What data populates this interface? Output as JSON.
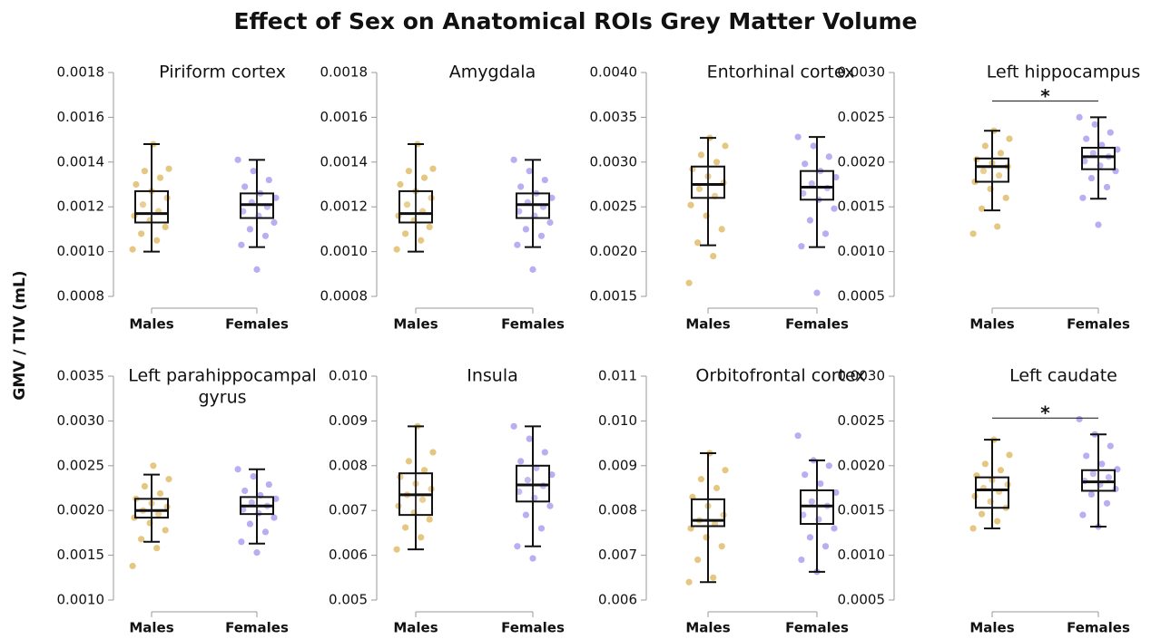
{
  "title": "Effect of Sex on Anatomical ROIs Grey Matter Volume",
  "y_label": "GMV / TIV (mL)",
  "chart_data": [
    {
      "type": "box",
      "title": "Piriform cortex",
      "categories": [
        "Males",
        "Females"
      ],
      "colors": [
        "#d6a22e",
        "#8878e8"
      ],
      "ylim": [
        0.0008,
        0.0018
      ],
      "yticks": [
        0.0008,
        {
          "value": 0.001,
          "label": "0.0010"
        },
        0.0012,
        0.0014,
        0.0016,
        0.0018
      ],
      "boxes": [
        {
          "low": 0.001,
          "q1": 0.00113,
          "median": 0.00117,
          "q3": 0.00127,
          "high": 0.00148,
          "points": [
            0.00101,
            0.00105,
            0.00108,
            0.00111,
            0.00114,
            0.00116,
            0.00118,
            0.00121,
            0.00124,
            0.00127,
            0.0013,
            0.00133,
            0.00136,
            0.00137,
            0.00148
          ]
        },
        {
          "low": 0.00102,
          "q1": 0.00115,
          "median": 0.00121,
          "q3": 0.00126,
          "high": 0.00141,
          "points": [
            0.00092,
            0.00103,
            0.00107,
            0.0011,
            0.00113,
            0.00116,
            0.00118,
            0.0012,
            0.00122,
            0.00124,
            0.00126,
            0.00129,
            0.00132,
            0.00136,
            0.00141
          ]
        }
      ]
    },
    {
      "type": "box",
      "title": "Amygdala",
      "categories": [
        "Males",
        "Females"
      ],
      "colors": [
        "#d6a22e",
        "#8878e8"
      ],
      "ylim": [
        0.0008,
        0.0018
      ],
      "yticks": [
        0.0008,
        {
          "value": 0.001,
          "label": "0.0010"
        },
        0.0012,
        0.0014,
        0.0016,
        0.0018
      ],
      "boxes": [
        {
          "low": 0.001,
          "q1": 0.00113,
          "median": 0.00117,
          "q3": 0.00127,
          "high": 0.00148,
          "points": [
            0.00101,
            0.00105,
            0.00108,
            0.00111,
            0.00114,
            0.00116,
            0.00118,
            0.00121,
            0.00124,
            0.00127,
            0.0013,
            0.00133,
            0.00136,
            0.00137,
            0.00148
          ]
        },
        {
          "low": 0.00102,
          "q1": 0.00115,
          "median": 0.00121,
          "q3": 0.00126,
          "high": 0.00141,
          "points": [
            0.00092,
            0.00103,
            0.00107,
            0.0011,
            0.00113,
            0.00116,
            0.00118,
            0.0012,
            0.00122,
            0.00124,
            0.00126,
            0.00129,
            0.00132,
            0.00136,
            0.00141
          ]
        }
      ]
    },
    {
      "type": "box",
      "title": "Entorhinal cortex",
      "categories": [
        "Males",
        "Females"
      ],
      "colors": [
        "#d6a22e",
        "#8878e8"
      ],
      "ylim": [
        0.0015,
        0.004
      ],
      "yticks": [
        0.0015,
        {
          "value": 0.002,
          "label": "0.0020"
        },
        0.0025,
        {
          "value": 0.003,
          "label": "0.0030"
        },
        0.0035,
        {
          "value": 0.004,
          "label": "0.0040"
        }
      ],
      "boxes": [
        {
          "low": 0.00207,
          "q1": 0.0026,
          "median": 0.00275,
          "q3": 0.00295,
          "high": 0.00327,
          "points": [
            0.00165,
            0.00195,
            0.0021,
            0.00225,
            0.0024,
            0.00252,
            0.00262,
            0.0027,
            0.00277,
            0.00284,
            0.00292,
            0.003,
            0.00308,
            0.00318,
            0.00327
          ]
        },
        {
          "low": 0.00205,
          "q1": 0.00258,
          "median": 0.00272,
          "q3": 0.0029,
          "high": 0.00328,
          "points": [
            0.00154,
            0.00206,
            0.0022,
            0.00235,
            0.00248,
            0.00258,
            0.00265,
            0.00271,
            0.00276,
            0.00283,
            0.0029,
            0.00298,
            0.00306,
            0.00318,
            0.00328
          ]
        }
      ]
    },
    {
      "type": "box",
      "title": "Left hippocampus",
      "categories": [
        "Males",
        "Females"
      ],
      "colors": [
        "#d6a22e",
        "#8878e8"
      ],
      "annotation": "*",
      "ylim": [
        0.0005,
        0.003
      ],
      "yticks": [
        0.0005,
        {
          "value": 0.001,
          "label": "0.0010"
        },
        0.0015,
        {
          "value": 0.002,
          "label": "0.0020"
        },
        0.0025,
        {
          "value": 0.003,
          "label": "0.0030"
        }
      ],
      "boxes": [
        {
          "low": 0.00146,
          "q1": 0.00178,
          "median": 0.00195,
          "q3": 0.00204,
          "high": 0.00235,
          "points": [
            0.0012,
            0.00128,
            0.00148,
            0.0016,
            0.0017,
            0.00178,
            0.00185,
            0.0019,
            0.00195,
            0.00199,
            0.00203,
            0.0021,
            0.00218,
            0.00226,
            0.00235
          ]
        },
        {
          "low": 0.00159,
          "q1": 0.00192,
          "median": 0.00206,
          "q3": 0.00216,
          "high": 0.0025,
          "points": [
            0.0013,
            0.0016,
            0.00172,
            0.00182,
            0.0019,
            0.00196,
            0.00201,
            0.00206,
            0.0021,
            0.00214,
            0.00219,
            0.00226,
            0.00233,
            0.00242,
            0.0025
          ]
        }
      ]
    },
    {
      "type": "box",
      "title": [
        "Left parahippocampal",
        "gyrus"
      ],
      "categories": [
        "Males",
        "Females"
      ],
      "colors": [
        "#d6a22e",
        "#8878e8"
      ],
      "ylim": [
        0.001,
        0.0035
      ],
      "yticks": [
        {
          "value": 0.001,
          "label": "0.0010"
        },
        0.0015,
        {
          "value": 0.002,
          "label": "0.0020"
        },
        0.0025,
        {
          "value": 0.003,
          "label": "0.0030"
        },
        0.0035
      ],
      "boxes": [
        {
          "low": 0.00165,
          "q1": 0.00192,
          "median": 0.002,
          "q3": 0.00213,
          "high": 0.0024,
          "points": [
            0.00138,
            0.00158,
            0.00168,
            0.00178,
            0.00186,
            0.00192,
            0.00196,
            0.002,
            0.00204,
            0.00208,
            0.00213,
            0.00219,
            0.00227,
            0.00235,
            0.0025
          ]
        },
        {
          "low": 0.00163,
          "q1": 0.00196,
          "median": 0.00205,
          "q3": 0.00215,
          "high": 0.00246,
          "points": [
            0.00153,
            0.00165,
            0.00176,
            0.00185,
            0.00192,
            0.00197,
            0.00201,
            0.00205,
            0.00209,
            0.00213,
            0.00217,
            0.00222,
            0.00229,
            0.00238,
            0.00246
          ]
        }
      ]
    },
    {
      "type": "box",
      "title": "Insula",
      "categories": [
        "Males",
        "Females"
      ],
      "colors": [
        "#d6a22e",
        "#8878e8"
      ],
      "ylim": [
        0.005,
        0.01
      ],
      "yticks": [
        0.005,
        0.006,
        0.007,
        0.008,
        0.009,
        {
          "value": 0.01,
          "label": "0.010"
        }
      ],
      "boxes": [
        {
          "low": 0.00613,
          "q1": 0.0069,
          "median": 0.00735,
          "q3": 0.00783,
          "high": 0.00888,
          "points": [
            0.00613,
            0.0064,
            0.00662,
            0.0068,
            0.00695,
            0.0071,
            0.00724,
            0.00735,
            0.00748,
            0.0076,
            0.00775,
            0.0079,
            0.0081,
            0.0083,
            0.00888
          ]
        },
        {
          "low": 0.0062,
          "q1": 0.0072,
          "median": 0.00757,
          "q3": 0.008,
          "high": 0.00888,
          "points": [
            0.00593,
            0.0062,
            0.0066,
            0.0069,
            0.0071,
            0.00728,
            0.00742,
            0.00755,
            0.00768,
            0.0078,
            0.00795,
            0.0081,
            0.0083,
            0.0086,
            0.00888
          ]
        }
      ]
    },
    {
      "type": "box",
      "title": "Orbitofrontal cortex",
      "categories": [
        "Males",
        "Females"
      ],
      "colors": [
        "#d6a22e",
        "#8878e8"
      ],
      "ylim": [
        0.006,
        0.011
      ],
      "yticks": [
        0.006,
        0.007,
        0.008,
        0.009,
        {
          "value": 0.01,
          "label": "0.010"
        },
        0.011
      ],
      "boxes": [
        {
          "low": 0.0064,
          "q1": 0.00765,
          "median": 0.00778,
          "q3": 0.00825,
          "high": 0.00928,
          "points": [
            0.0064,
            0.0065,
            0.0069,
            0.0072,
            0.0074,
            0.0076,
            0.0077,
            0.00778,
            0.0079,
            0.0081,
            0.0083,
            0.0085,
            0.0087,
            0.0089,
            0.00928
          ]
        },
        {
          "low": 0.00663,
          "q1": 0.0077,
          "median": 0.0081,
          "q3": 0.00845,
          "high": 0.00912,
          "points": [
            0.00663,
            0.0069,
            0.0072,
            0.0074,
            0.0076,
            0.0078,
            0.0079,
            0.0081,
            0.0082,
            0.0084,
            0.0086,
            0.0088,
            0.009,
            0.00912,
            0.00967
          ]
        }
      ]
    },
    {
      "type": "box",
      "title": "Left caudate",
      "categories": [
        "Males",
        "Females"
      ],
      "colors": [
        "#d6a22e",
        "#8878e8"
      ],
      "annotation": "*",
      "ylim": [
        0.0005,
        0.003
      ],
      "yticks": [
        0.0005,
        {
          "value": 0.001,
          "label": "0.0010"
        },
        0.0015,
        {
          "value": 0.002,
          "label": "0.0020"
        },
        0.0025,
        {
          "value": 0.003,
          "label": "0.0030"
        }
      ],
      "boxes": [
        {
          "low": 0.0013,
          "q1": 0.00153,
          "median": 0.00173,
          "q3": 0.00187,
          "high": 0.00229,
          "points": [
            0.0013,
            0.00138,
            0.00146,
            0.00153,
            0.0016,
            0.00166,
            0.00171,
            0.00175,
            0.00179,
            0.00184,
            0.00189,
            0.00195,
            0.00202,
            0.00212,
            0.00229
          ]
        },
        {
          "low": 0.00132,
          "q1": 0.00172,
          "median": 0.00182,
          "q3": 0.00195,
          "high": 0.00235,
          "points": [
            0.00132,
            0.00145,
            0.00158,
            0.00168,
            0.00174,
            0.00179,
            0.00183,
            0.00187,
            0.00191,
            0.00196,
            0.00202,
            0.00211,
            0.00222,
            0.00235,
            0.00252
          ]
        }
      ]
    }
  ]
}
